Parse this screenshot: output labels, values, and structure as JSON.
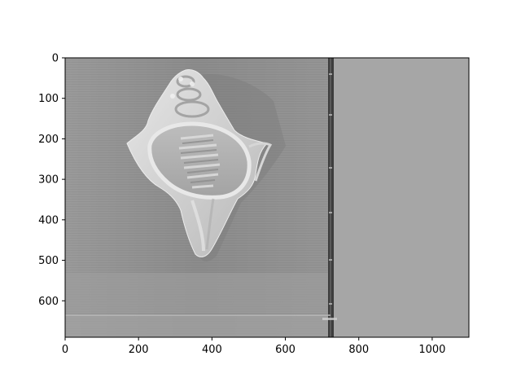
{
  "figure": {
    "image_description_free": true,
    "x_axis": {
      "ticks": [
        0,
        200,
        400,
        600,
        800,
        1000
      ],
      "range": [
        0,
        1100
      ]
    },
    "y_axis": {
      "ticks": [
        0,
        100,
        200,
        300,
        400,
        500,
        600
      ],
      "range": [
        0,
        690
      ],
      "inverted": true
    },
    "colors": {
      "background_left": "#8f8f8f",
      "background_right": "#a8a8a8",
      "divider_band": "#3a3a3a",
      "shell_highlight": "#dcdcdc",
      "shell_shadow": "#7a7a7a"
    },
    "icons": [
      "grayscale-shell-image"
    ]
  }
}
